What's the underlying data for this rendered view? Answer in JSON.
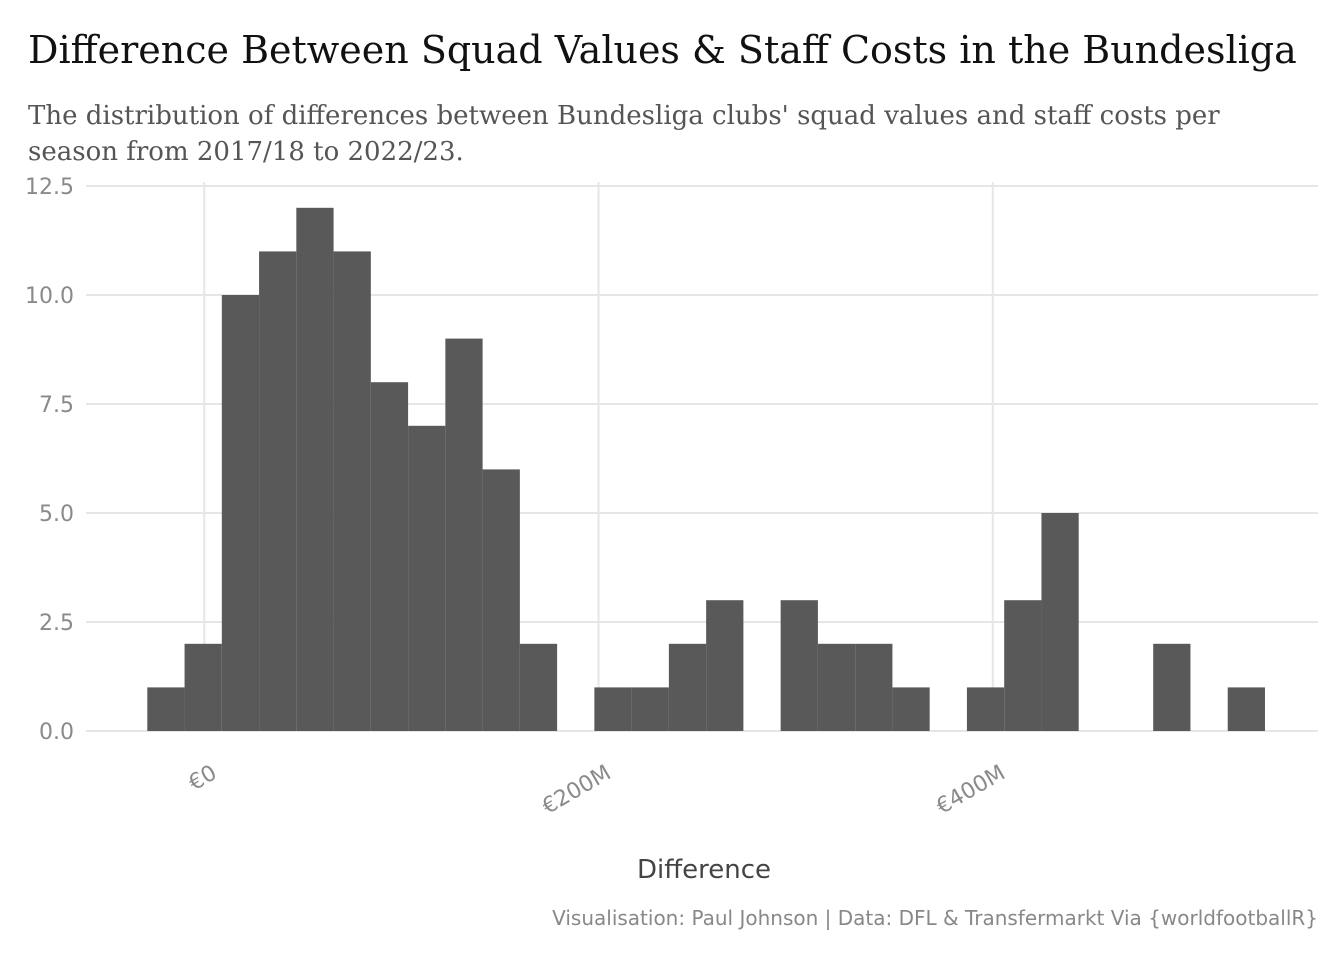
{
  "chart_data": {
    "type": "bar",
    "title": "Difference Between Squad Values & Staff Costs in the Bundesliga",
    "subtitle": "The distribution of differences between Bundesliga clubs' squad values and staff costs per season from 2017/18 to 2022/23.",
    "xlabel": "Difference",
    "ylabel": "",
    "caption": "Visualisation: Paul Johnson | Data: DFL & Transfermarkt Via {worldfootballR}",
    "bar_color": "#595959",
    "grid": true,
    "ylim": [
      0,
      12.5
    ],
    "y_ticks": [
      "0.0",
      "2.5",
      "5.0",
      "7.5",
      "10.0",
      "12.5"
    ],
    "x_ticks": [
      "€0",
      "€200M",
      "€400M"
    ],
    "x_tick_values_eur_millions": [
      0,
      200,
      400
    ],
    "xlim_eur_millions": [
      -60,
      565
    ],
    "bin_width_eur_millions": 18.9,
    "bin_starts_eur_millions": [
      -28.9,
      -10,
      8.9,
      27.8,
      46.7,
      65.6,
      84.5,
      103.4,
      122.3,
      141.2,
      160.1,
      179,
      197.9,
      216.8,
      235.7,
      254.6,
      273.5,
      292.4,
      311.3,
      330.2,
      349.1,
      368,
      386.9,
      405.8,
      424.7,
      443.6,
      462.5,
      481.4,
      500.3,
      519.2
    ],
    "values": [
      1,
      2,
      10,
      11,
      12,
      11,
      8,
      7,
      9,
      6,
      2,
      0,
      1,
      1,
      2,
      3,
      0,
      3,
      2,
      2,
      1,
      0,
      1,
      3,
      5,
      0,
      0,
      2,
      0,
      1
    ]
  }
}
